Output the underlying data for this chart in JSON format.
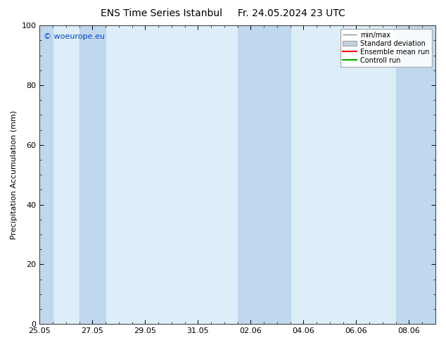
{
  "title_left": "ENS Time Series Istanbul",
  "title_right": "Fr. 24.05.2024 23 UTC",
  "ylabel": "Precipitation Accumulation (mm)",
  "ylim": [
    0,
    100
  ],
  "background_color": "#ffffff",
  "plot_bg_color": "#ddeef8",
  "band_color": "#c0d8ee",
  "watermark": "© woeurope.eu",
  "x_tick_labels": [
    "25.05",
    "27.05",
    "29.05",
    "31.05",
    "02.06",
    "04.06",
    "06.06",
    "08.06"
  ],
  "x_tick_positions": [
    0,
    2,
    4,
    6,
    8,
    10,
    12,
    14
  ],
  "xlim": [
    0,
    15
  ],
  "band_ranges": [
    [
      0,
      0.5
    ],
    [
      1.5,
      2.5
    ],
    [
      7.5,
      9.5
    ],
    [
      13.5,
      15.0
    ]
  ],
  "legend_labels": [
    "min/max",
    "Standard deviation",
    "Ensemble mean run",
    "Controll run"
  ],
  "legend_minmax_color": "#909090",
  "legend_std_color": "#c0d0dc",
  "legend_ens_color": "#ff0000",
  "legend_ctrl_color": "#00aa00",
  "yticks": [
    0,
    20,
    40,
    60,
    80,
    100
  ],
  "title_fontsize": 10,
  "axis_fontsize": 8,
  "tick_fontsize": 8
}
